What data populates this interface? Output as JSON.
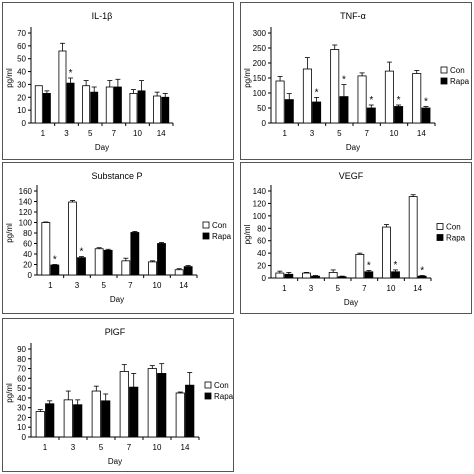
{
  "colors": {
    "con": "#ffffff",
    "rapa": "#000000",
    "axis": "#000000",
    "frame": "#555555"
  },
  "legend_labels": {
    "con": "Con",
    "rapa": "Rapa"
  },
  "chart_data": [
    {
      "type": "bar",
      "title": "IL-1β",
      "xlabel": "Day",
      "ylabel": "pg/ml",
      "categories": [
        "1",
        "3",
        "5",
        "7",
        "10",
        "14"
      ],
      "ylim": [
        0,
        70
      ],
      "yticks": [
        0,
        10,
        20,
        30,
        40,
        50,
        60,
        70
      ],
      "legend": "none",
      "series": [
        {
          "values": [
            29,
            56,
            29,
            28,
            23,
            21
          ],
          "errors": [
            0,
            6,
            4,
            5,
            3,
            3
          ]
        },
        {
          "values": [
            23,
            31,
            24,
            28,
            25,
            20
          ],
          "errors": [
            2,
            4,
            4,
            6,
            8,
            3
          ]
        }
      ],
      "significance": [
        false,
        true,
        false,
        false,
        false,
        false
      ]
    },
    {
      "type": "bar",
      "title": "TNF-α",
      "xlabel": "Day",
      "ylabel": "pg/ml",
      "categories": [
        "1",
        "3",
        "5",
        "7",
        "10",
        "14"
      ],
      "ylim": [
        0,
        300
      ],
      "yticks": [
        0,
        50,
        100,
        150,
        200,
        250,
        300
      ],
      "legend": "right",
      "series": [
        {
          "name": "Con",
          "values": [
            140,
            180,
            245,
            157,
            173,
            165
          ],
          "errors": [
            15,
            38,
            15,
            10,
            30,
            10
          ]
        },
        {
          "name": "Rapa",
          "values": [
            78,
            70,
            88,
            50,
            55,
            50
          ],
          "errors": [
            20,
            15,
            40,
            10,
            5,
            5
          ]
        }
      ],
      "significance": [
        false,
        true,
        true,
        true,
        true,
        true
      ]
    },
    {
      "type": "bar",
      "title": "Substance P",
      "xlabel": "Day",
      "ylabel": "pg/ml",
      "categories": [
        "1",
        "3",
        "5",
        "7",
        "10",
        "14"
      ],
      "ylim": [
        0,
        160
      ],
      "yticks": [
        0,
        20,
        40,
        60,
        80,
        100,
        120,
        140,
        160
      ],
      "legend": "right",
      "series": [
        {
          "name": "Con",
          "values": [
            100,
            139,
            50,
            27,
            25,
            10
          ],
          "errors": [
            1,
            3,
            2,
            5,
            2,
            2
          ]
        },
        {
          "name": "Rapa",
          "values": [
            19,
            33,
            47,
            81,
            60,
            16
          ],
          "errors": [
            1,
            2,
            2,
            2,
            2,
            2
          ]
        }
      ],
      "significance": [
        true,
        true,
        false,
        false,
        false,
        false
      ]
    },
    {
      "type": "bar",
      "title": "VEGF",
      "xlabel": "Day",
      "ylabel": "pg/ml",
      "categories": [
        "1",
        "3",
        "5",
        "7",
        "10",
        "14"
      ],
      "ylim": [
        0,
        140
      ],
      "yticks": [
        0,
        20,
        40,
        60,
        80,
        100,
        120,
        140
      ],
      "legend": "right",
      "series": [
        {
          "name": "Con",
          "values": [
            8,
            8,
            9,
            38,
            82,
            131
          ],
          "errors": [
            3,
            1,
            4,
            2,
            4,
            3
          ]
        },
        {
          "name": "Rapa",
          "values": [
            6,
            3,
            2,
            10,
            10,
            3
          ],
          "errors": [
            3,
            1,
            1,
            2,
            3,
            1
          ]
        }
      ],
      "significance": [
        false,
        false,
        false,
        true,
        true,
        true
      ]
    },
    {
      "type": "bar",
      "title": "PlGF",
      "xlabel": "Day",
      "ylabel": "pg/ml",
      "categories": [
        "1",
        "3",
        "5",
        "7",
        "10",
        "14"
      ],
      "ylim": [
        0,
        90
      ],
      "yticks": [
        0,
        10,
        20,
        30,
        40,
        50,
        60,
        70,
        80,
        90
      ],
      "legend": "right",
      "series": [
        {
          "name": "Con",
          "values": [
            26,
            38,
            47,
            67,
            70,
            45
          ],
          "errors": [
            2,
            9,
            5,
            7,
            3,
            1
          ]
        },
        {
          "name": "Rapa",
          "values": [
            34,
            33,
            37,
            51,
            65,
            53
          ],
          "errors": [
            3,
            5,
            7,
            14,
            10,
            13
          ]
        }
      ],
      "significance": [
        false,
        false,
        false,
        false,
        false,
        false
      ]
    }
  ]
}
